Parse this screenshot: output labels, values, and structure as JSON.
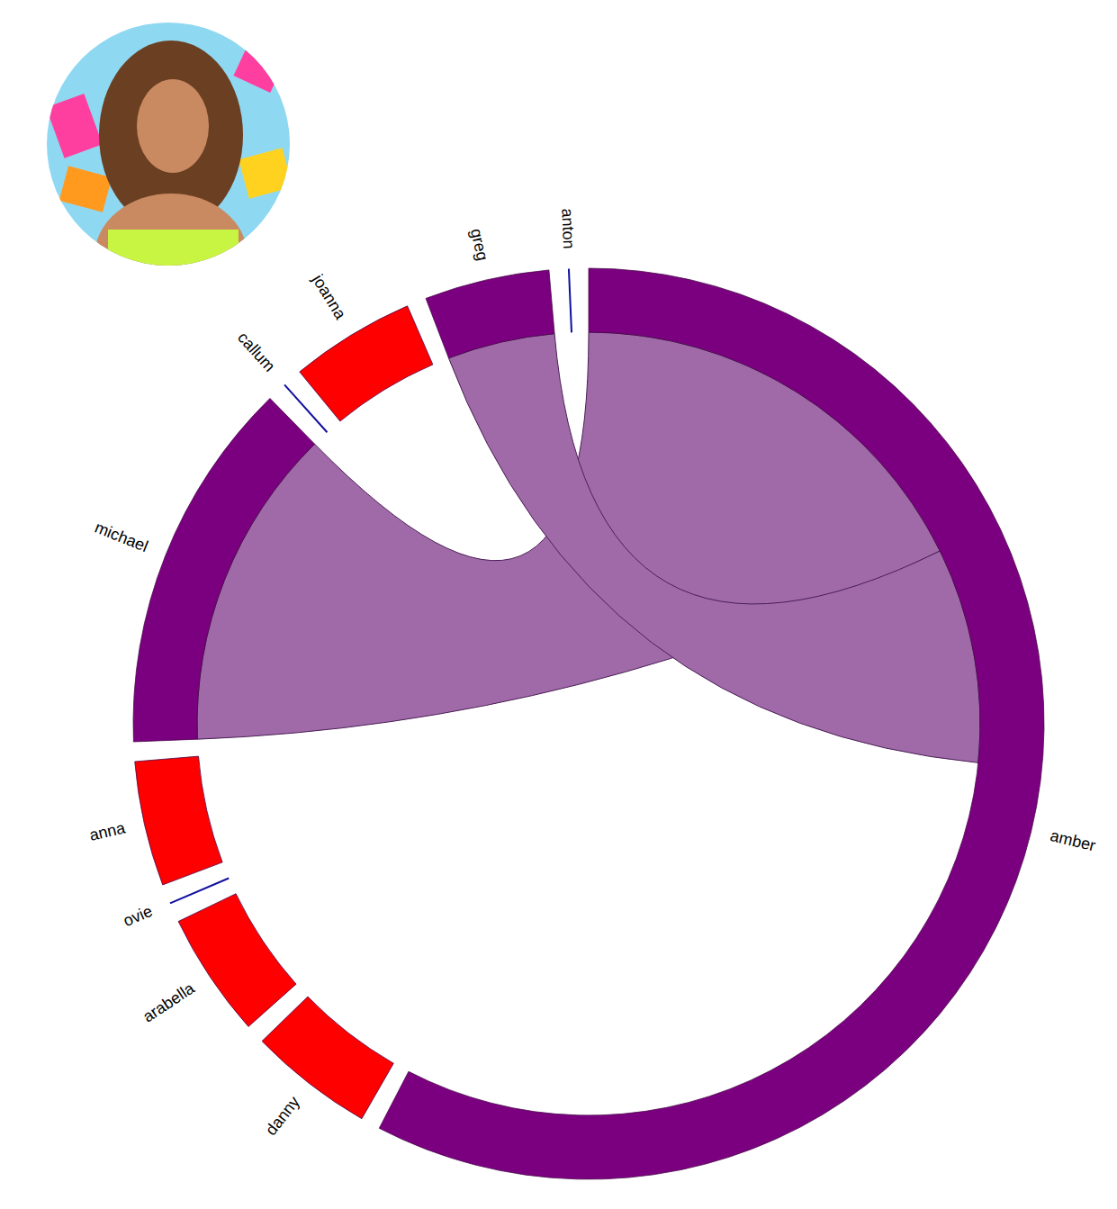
{
  "chart_data": {
    "type": "chord",
    "nodes": [
      {
        "name": "amber",
        "color": "#7b0080",
        "value": 13
      },
      {
        "name": "danny",
        "color": "#ff0000",
        "value": 1
      },
      {
        "name": "arabella",
        "color": "#ff0000",
        "value": 1
      },
      {
        "name": "ovie",
        "color": "#1010a0",
        "value": 0
      },
      {
        "name": "anna",
        "color": "#ff0000",
        "value": 1
      },
      {
        "name": "michael",
        "color": "#7b0080",
        "value": 3
      },
      {
        "name": "callum",
        "color": "#1010a0",
        "value": 0
      },
      {
        "name": "joanna",
        "color": "#ff0000",
        "value": 1
      },
      {
        "name": "greg",
        "color": "#7b0080",
        "value": 1
      },
      {
        "name": "anton",
        "color": "#1010a0",
        "value": 0
      }
    ],
    "chords": [
      {
        "source": "amber",
        "target": "michael",
        "source_value": 4,
        "target_value": 3,
        "color": "#a06aa8"
      },
      {
        "source": "amber",
        "target": "greg",
        "source_value": 2,
        "target_value": 1,
        "color": "#a06aa8"
      }
    ]
  }
}
